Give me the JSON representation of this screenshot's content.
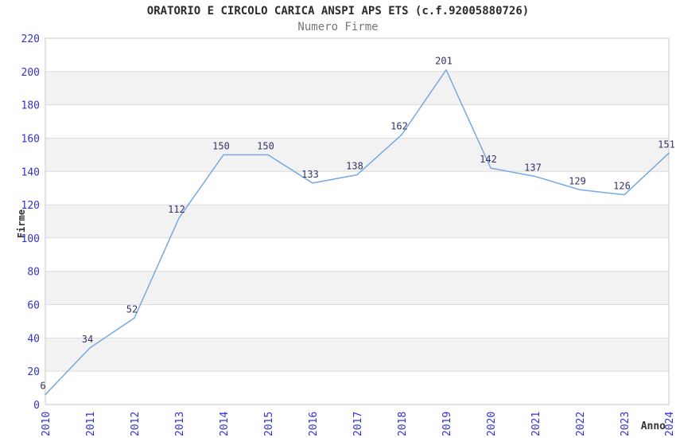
{
  "chart_data": {
    "type": "line",
    "title": "ORATORIO E CIRCOLO CARICA ANSPI APS ETS (c.f.92005880726)",
    "subtitle": "Numero Firme",
    "xlabel": "Anno",
    "ylabel": "Firme",
    "x": [
      "2010",
      "2011",
      "2012",
      "2013",
      "2014",
      "2015",
      "2016",
      "2017",
      "2018",
      "2019",
      "2020",
      "2021",
      "2022",
      "2023",
      "2024"
    ],
    "values": [
      6,
      34,
      52,
      112,
      150,
      150,
      133,
      138,
      162,
      201,
      142,
      137,
      129,
      126,
      151
    ],
    "ylim": [
      0,
      220
    ],
    "ytick_step": 20,
    "grid": "horizontal-alternating-bands",
    "legend": "none",
    "colors": {
      "line": "#75aae1",
      "tick_label": "#3333cc",
      "data_label": "#333366",
      "band": "#f2f2f2",
      "gridline": "#dcdcdc",
      "plot_border": "#c9c9c9",
      "title": "#2b2b2b",
      "subtitle": "#777777",
      "axis_title": "#333333",
      "background": "#ffffff"
    }
  }
}
